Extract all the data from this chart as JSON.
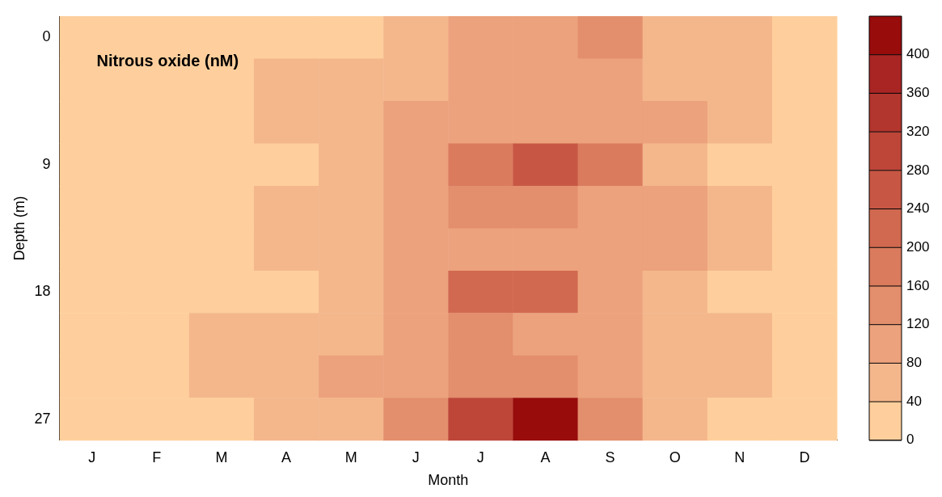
{
  "chart_data": {
    "type": "heatmap",
    "title": "Nitrous oxide (nM)",
    "xlabel": "Month",
    "ylabel": "Depth (m)",
    "categories": [
      "J",
      "F",
      "M",
      "A",
      "M",
      "J",
      "J",
      "A",
      "S",
      "O",
      "N",
      "D"
    ],
    "y_categories": [
      "0",
      null,
      null,
      "9",
      null,
      null,
      "18",
      null,
      null,
      "27"
    ],
    "cells": [
      [
        20,
        20,
        20,
        25,
        35,
        60,
        100,
        110,
        130,
        60,
        40,
        30
      ],
      [
        20,
        20,
        25,
        45,
        55,
        70,
        100,
        100,
        100,
        70,
        45,
        25
      ],
      [
        20,
        20,
        30,
        50,
        60,
        85,
        110,
        110,
        105,
        85,
        50,
        25
      ],
      [
        20,
        20,
        25,
        30,
        50,
        90,
        170,
        250,
        180,
        50,
        30,
        20
      ],
      [
        20,
        20,
        35,
        50,
        60,
        90,
        120,
        125,
        110,
        85,
        55,
        25
      ],
      [
        20,
        20,
        35,
        45,
        55,
        85,
        110,
        105,
        95,
        80,
        45,
        25
      ],
      [
        20,
        20,
        25,
        30,
        45,
        90,
        200,
        230,
        85,
        55,
        35,
        20
      ],
      [
        20,
        25,
        40,
        50,
        65,
        95,
        120,
        115,
        95,
        70,
        45,
        25
      ],
      [
        20,
        30,
        45,
        55,
        80,
        105,
        140,
        130,
        105,
        75,
        45,
        25
      ],
      [
        20,
        20,
        30,
        45,
        70,
        120,
        300,
        420,
        150,
        60,
        30,
        20
      ]
    ],
    "colors": [
      "#fecf9c",
      "#f4b78c",
      "#eca27c",
      "#e38e6c",
      "#da7b5e",
      "#d16950",
      "#c75744",
      "#bd4639",
      "#b2352e",
      "#a82524",
      "#980c0c"
    ],
    "clim": [
      0,
      440
    ],
    "cticks": [
      0,
      40,
      80,
      120,
      160,
      200,
      240,
      280,
      320,
      360,
      400
    ]
  }
}
